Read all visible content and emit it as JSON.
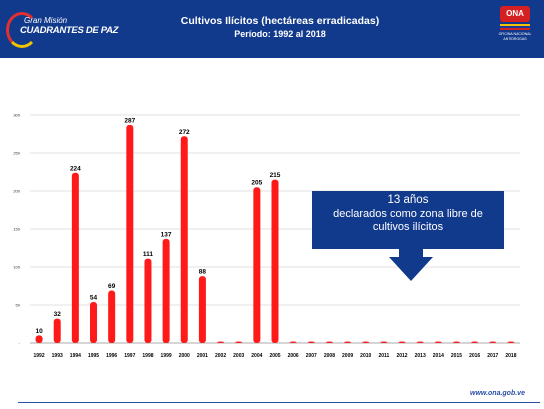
{
  "header": {
    "logo_left_line1": "Gran Misión",
    "logo_left_line2": "CUADRANTES DE PAZ",
    "title": "Cultivos Ilícitos (hectáreas erradicadas)",
    "subtitle": "Período: 1992 al 2018",
    "logo_right_badge": "ONA",
    "logo_right_text": "OFICINA NACIONAL ANTIDROGAS"
  },
  "callout": {
    "line1": "13 años",
    "line2": "declarados como zona libre de",
    "line3": "cultivos ilícitos"
  },
  "footer": {
    "url": "www.ona.gob.ve"
  },
  "colors": {
    "bar": "#ff1a1a",
    "header": "#123a8c",
    "grid": "#d9d9d9"
  },
  "chart_data": {
    "type": "bar",
    "title": "Cultivos Ilícitos (hectáreas erradicadas)",
    "subtitle": "Período: 1992 al 2018",
    "categories": [
      "1992",
      "1993",
      "1994",
      "1995",
      "1996",
      "1997",
      "1998",
      "1999",
      "2000",
      "2001",
      "2002",
      "2003",
      "2004",
      "2005",
      "2006",
      "2007",
      "2008",
      "2009",
      "2010",
      "2011",
      "2012",
      "2013",
      "2014",
      "2015",
      "2016",
      "2017",
      "2018"
    ],
    "values": [
      10,
      32,
      224,
      54,
      69,
      287,
      111,
      137,
      272,
      88,
      0,
      0,
      205,
      215,
      0,
      0,
      0,
      0,
      0,
      0,
      0,
      0,
      0,
      0,
      0,
      0,
      0
    ],
    "data_labels": [
      "10",
      "32",
      "224",
      "54",
      "69",
      "287",
      "111",
      "137",
      "272",
      "88",
      "",
      "",
      "205",
      "215",
      "",
      "",
      "",
      "",
      "",
      "",
      "",
      "",
      "",
      "",
      "",
      "",
      ""
    ],
    "yticks": [
      "-",
      "50",
      "100",
      "150",
      "200",
      "250",
      "300"
    ],
    "ylim": [
      0,
      300
    ],
    "grid": true,
    "legend": "none"
  }
}
